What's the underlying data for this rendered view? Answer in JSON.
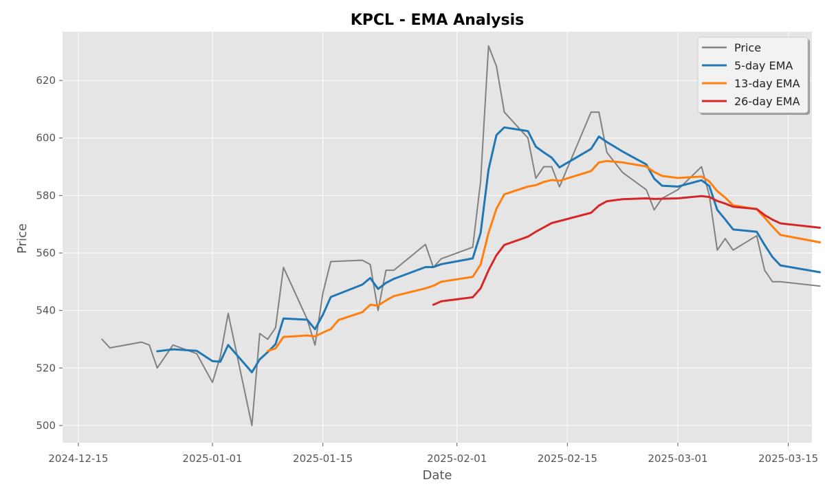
{
  "chart_data": {
    "type": "line",
    "title": "KPCL - EMA Analysis",
    "xlabel": "Date",
    "ylabel": "Price",
    "ylim": [
      494,
      637
    ],
    "xlim": [
      "2024-12-13",
      "2025-03-18"
    ],
    "grid": true,
    "legend_position": "top-right",
    "x_ticks": [
      "2024-12-15",
      "2025-01-01",
      "2025-01-15",
      "2025-02-01",
      "2025-02-15",
      "2025-03-01",
      "2025-03-15"
    ],
    "y_ticks": [
      500,
      520,
      540,
      560,
      580,
      600,
      620
    ],
    "series": [
      {
        "name": "Price",
        "color": "#808080",
        "points": [
          [
            "2024-12-18",
            530
          ],
          [
            "2024-12-19",
            527
          ],
          [
            "2024-12-23",
            529
          ],
          [
            "2024-12-24",
            528
          ],
          [
            "2024-12-25",
            520
          ],
          [
            "2024-12-27",
            528
          ],
          [
            "2024-12-30",
            525
          ],
          [
            "2025-01-01",
            515
          ],
          [
            "2025-01-02",
            524
          ],
          [
            "2025-01-03",
            539
          ],
          [
            "2025-01-06",
            500
          ],
          [
            "2025-01-07",
            532
          ],
          [
            "2025-01-08",
            530
          ],
          [
            "2025-01-09",
            534
          ],
          [
            "2025-01-10",
            555
          ],
          [
            "2025-01-13",
            537
          ],
          [
            "2025-01-14",
            528
          ],
          [
            "2025-01-15",
            546
          ],
          [
            "2025-01-16",
            557
          ],
          [
            "2025-01-20",
            557.5
          ],
          [
            "2025-01-21",
            556
          ],
          [
            "2025-01-22",
            540
          ],
          [
            "2025-01-23",
            554
          ],
          [
            "2025-01-24",
            554
          ],
          [
            "2025-01-28",
            563
          ],
          [
            "2025-01-29",
            555
          ],
          [
            "2025-01-30",
            558
          ],
          [
            "2025-02-03",
            562
          ],
          [
            "2025-02-04",
            585
          ],
          [
            "2025-02-05",
            632
          ],
          [
            "2025-02-06",
            625
          ],
          [
            "2025-02-07",
            609
          ],
          [
            "2025-02-10",
            600
          ],
          [
            "2025-02-11",
            586
          ],
          [
            "2025-02-12",
            590
          ],
          [
            "2025-02-13",
            590
          ],
          [
            "2025-02-14",
            583
          ],
          [
            "2025-02-18",
            609
          ],
          [
            "2025-02-19",
            609
          ],
          [
            "2025-02-20",
            595
          ],
          [
            "2025-02-22",
            588
          ],
          [
            "2025-02-25",
            582
          ],
          [
            "2025-02-26",
            575
          ],
          [
            "2025-02-27",
            579
          ],
          [
            "2025-03-01",
            582
          ],
          [
            "2025-03-04",
            590
          ],
          [
            "2025-03-05",
            580
          ],
          [
            "2025-03-06",
            561
          ],
          [
            "2025-03-07",
            565
          ],
          [
            "2025-03-08",
            561
          ],
          [
            "2025-03-11",
            566
          ],
          [
            "2025-03-12",
            554
          ],
          [
            "2025-03-13",
            550
          ],
          [
            "2025-03-14",
            550
          ],
          [
            "2025-03-19",
            548.5
          ]
        ]
      },
      {
        "name": "5-day EMA",
        "color": "#1f77b4",
        "points": [
          [
            "2024-12-25",
            525.8
          ],
          [
            "2024-12-27",
            526.5
          ],
          [
            "2024-12-30",
            526
          ],
          [
            "2025-01-01",
            522.4
          ],
          [
            "2025-01-02",
            522.2
          ],
          [
            "2025-01-03",
            528
          ],
          [
            "2025-01-06",
            518.5
          ],
          [
            "2025-01-07",
            523
          ],
          [
            "2025-01-08",
            525.5
          ],
          [
            "2025-01-09",
            528.3
          ],
          [
            "2025-01-10",
            537.2
          ],
          [
            "2025-01-13",
            536.8
          ],
          [
            "2025-01-14",
            533.5
          ],
          [
            "2025-01-15",
            538.5
          ],
          [
            "2025-01-16",
            544.7
          ],
          [
            "2025-01-20",
            549
          ],
          [
            "2025-01-21",
            551.3
          ],
          [
            "2025-01-22",
            547.5
          ],
          [
            "2025-01-23",
            549.6
          ],
          [
            "2025-01-24",
            551
          ],
          [
            "2025-01-28",
            555.1
          ],
          [
            "2025-01-29",
            555.1
          ],
          [
            "2025-01-30",
            556.1
          ],
          [
            "2025-02-03",
            558.1
          ],
          [
            "2025-02-04",
            567
          ],
          [
            "2025-02-05",
            589
          ],
          [
            "2025-02-06",
            601
          ],
          [
            "2025-02-07",
            603.7
          ],
          [
            "2025-02-10",
            602.4
          ],
          [
            "2025-02-11",
            597
          ],
          [
            "2025-02-12",
            595
          ],
          [
            "2025-02-13",
            593.2
          ],
          [
            "2025-02-14",
            589.8
          ],
          [
            "2025-02-18",
            596.2
          ],
          [
            "2025-02-19",
            600.5
          ],
          [
            "2025-02-20",
            598.6
          ],
          [
            "2025-02-22",
            595.3
          ],
          [
            "2025-02-25",
            590.8
          ],
          [
            "2025-02-26",
            585.9
          ],
          [
            "2025-02-27",
            583.4
          ],
          [
            "2025-03-01",
            583.1
          ],
          [
            "2025-03-04",
            585.3
          ],
          [
            "2025-03-05",
            583.3
          ],
          [
            "2025-03-06",
            575
          ],
          [
            "2025-03-07",
            571.7
          ],
          [
            "2025-03-08",
            568.2
          ],
          [
            "2025-03-11",
            567.4
          ],
          [
            "2025-03-12",
            562.8
          ],
          [
            "2025-03-13",
            558.6
          ],
          [
            "2025-03-14",
            555.7
          ],
          [
            "2025-03-19",
            553.3
          ]
        ]
      },
      {
        "name": "13-day EMA",
        "color": "#ff7f0e",
        "points": [
          [
            "2025-01-08",
            525.9
          ],
          [
            "2025-01-09",
            526.8
          ],
          [
            "2025-01-10",
            530.8
          ],
          [
            "2025-01-13",
            531.3
          ],
          [
            "2025-01-14",
            531
          ],
          [
            "2025-01-15",
            532.3
          ],
          [
            "2025-01-16",
            533.5
          ],
          [
            "2025-01-17",
            536.7
          ],
          [
            "2025-01-20",
            539.4
          ],
          [
            "2025-01-21",
            542
          ],
          [
            "2025-01-22",
            541.7
          ],
          [
            "2025-01-23",
            543.5
          ],
          [
            "2025-01-24",
            545
          ],
          [
            "2025-01-28",
            547.7
          ],
          [
            "2025-01-29",
            548.6
          ],
          [
            "2025-01-30",
            550
          ],
          [
            "2025-02-03",
            551.7
          ],
          [
            "2025-02-04",
            556
          ],
          [
            "2025-02-05",
            567
          ],
          [
            "2025-02-06",
            575.4
          ],
          [
            "2025-02-07",
            580.4
          ],
          [
            "2025-02-10",
            583.1
          ],
          [
            "2025-02-11",
            583.6
          ],
          [
            "2025-02-12",
            584.7
          ],
          [
            "2025-02-13",
            585.4
          ],
          [
            "2025-02-14",
            585.1
          ],
          [
            "2025-02-18",
            588.5
          ],
          [
            "2025-02-19",
            591.5
          ],
          [
            "2025-02-20",
            592
          ],
          [
            "2025-02-22",
            591.5
          ],
          [
            "2025-02-25",
            590.1
          ],
          [
            "2025-02-26",
            588.2
          ],
          [
            "2025-02-27",
            586.8
          ],
          [
            "2025-03-01",
            586.1
          ],
          [
            "2025-03-04",
            586.6
          ],
          [
            "2025-03-05",
            584.9
          ],
          [
            "2025-03-06",
            581.5
          ],
          [
            "2025-03-07",
            579.3
          ],
          [
            "2025-03-08",
            576.6
          ],
          [
            "2025-03-11",
            575.2
          ],
          [
            "2025-03-12",
            572.3
          ],
          [
            "2025-03-13",
            569.2
          ],
          [
            "2025-03-14",
            566.3
          ],
          [
            "2025-03-19",
            563.7
          ]
        ]
      },
      {
        "name": "26-day EMA",
        "color": "#d62728",
        "points": [
          [
            "2025-01-29",
            542
          ],
          [
            "2025-01-30",
            543.2
          ],
          [
            "2025-02-03",
            544.6
          ],
          [
            "2025-02-04",
            547.7
          ],
          [
            "2025-02-05",
            554
          ],
          [
            "2025-02-06",
            559.2
          ],
          [
            "2025-02-07",
            562.8
          ],
          [
            "2025-02-10",
            565.7
          ],
          [
            "2025-02-11",
            567.4
          ],
          [
            "2025-02-12",
            568.9
          ],
          [
            "2025-02-13",
            570.4
          ],
          [
            "2025-02-18",
            574
          ],
          [
            "2025-02-19",
            576.5
          ],
          [
            "2025-02-20",
            578
          ],
          [
            "2025-02-22",
            578.7
          ],
          [
            "2025-02-25",
            579
          ],
          [
            "2025-02-26",
            578.8
          ],
          [
            "2025-03-01",
            579
          ],
          [
            "2025-03-04",
            579.8
          ],
          [
            "2025-03-05",
            579.5
          ],
          [
            "2025-03-06",
            578.1
          ],
          [
            "2025-03-07",
            577.2
          ],
          [
            "2025-03-08",
            576.1
          ],
          [
            "2025-03-11",
            575.3
          ],
          [
            "2025-03-12",
            573.2
          ],
          [
            "2025-03-13",
            571.6
          ],
          [
            "2025-03-14",
            570.3
          ],
          [
            "2025-03-19",
            568.8
          ]
        ]
      }
    ]
  }
}
